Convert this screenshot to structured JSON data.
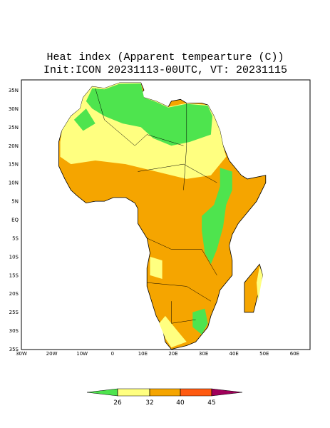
{
  "title": [
    "Heat index (Apparent tempearture (C))",
    "Init:ICON 20231113-00UTC, VT: 20231115"
  ],
  "map": {
    "lat_labels": [
      "35N",
      "30N",
      "25N",
      "20N",
      "15N",
      "10N",
      "5N",
      "EQ",
      "5S",
      "10S",
      "15S",
      "20S",
      "25S",
      "30S",
      "35S"
    ],
    "lon_labels": [
      "30W",
      "20W",
      "10W",
      "0",
      "10E",
      "20E",
      "30E",
      "40E",
      "50E",
      "60E"
    ]
  },
  "colorbar": {
    "ticks": [
      26,
      32,
      40,
      45
    ],
    "colors": [
      "#4ee44e",
      "#ffff80",
      "#f5a500",
      "#ff5a10",
      "#a0005a"
    ]
  }
}
